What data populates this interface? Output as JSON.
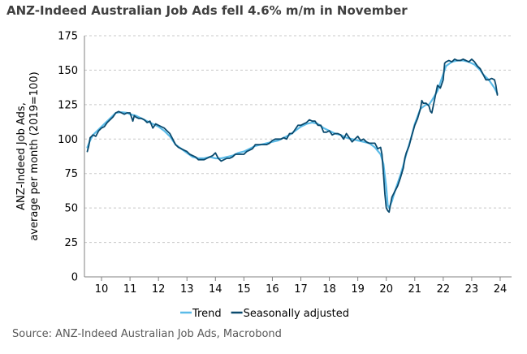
{
  "chart_data": {
    "type": "line",
    "title": "ANZ-Indeed Australian Job Ads fell 4.6% m/m in November",
    "ylabel_lines": [
      "ANZ-Indeed Job Ads,",
      "average per month (2019=100)"
    ],
    "xlabel": "",
    "ylim": [
      0,
      175
    ],
    "yticks": [
      0,
      25,
      50,
      75,
      100,
      125,
      150,
      175
    ],
    "xlim": [
      9.4,
      24.4
    ],
    "xticks": [
      {
        "value": 10,
        "label": "10"
      },
      {
        "value": 11,
        "label": "11"
      },
      {
        "value": 12,
        "label": "12"
      },
      {
        "value": 13,
        "label": "13"
      },
      {
        "value": 14,
        "label": "14"
      },
      {
        "value": 15,
        "label": "15"
      },
      {
        "value": 16,
        "label": "16"
      },
      {
        "value": 17,
        "label": "17"
      },
      {
        "value": 18,
        "label": "18"
      },
      {
        "value": 19,
        "label": "19"
      },
      {
        "value": 20,
        "label": "20"
      },
      {
        "value": 21,
        "label": "21"
      },
      {
        "value": 22,
        "label": "22"
      },
      {
        "value": 23,
        "label": "23"
      },
      {
        "value": 24,
        "label": "24"
      }
    ],
    "grid": "horizontal dashed",
    "legend_position": "bottom-center",
    "series": [
      {
        "name": "Trend",
        "color": "#5bbbe8",
        "points": [
          [
            9.5,
            94
          ],
          [
            9.6,
            99
          ],
          [
            9.7,
            103
          ],
          [
            9.8,
            105
          ],
          [
            9.9,
            107
          ],
          [
            10.0,
            109
          ],
          [
            10.2,
            113
          ],
          [
            10.4,
            117
          ],
          [
            10.5,
            119
          ],
          [
            10.7,
            119.5
          ],
          [
            10.9,
            119
          ],
          [
            11.0,
            118
          ],
          [
            11.2,
            117
          ],
          [
            11.4,
            115
          ],
          [
            11.6,
            113
          ],
          [
            11.8,
            111
          ],
          [
            12.0,
            109
          ],
          [
            12.2,
            106
          ],
          [
            12.4,
            102
          ],
          [
            12.5,
            99
          ],
          [
            12.6,
            96
          ],
          [
            12.8,
            93
          ],
          [
            13.0,
            90
          ],
          [
            13.2,
            87
          ],
          [
            13.4,
            86
          ],
          [
            13.6,
            86
          ],
          [
            13.8,
            87
          ],
          [
            14.0,
            86
          ],
          [
            14.2,
            86
          ],
          [
            14.4,
            87
          ],
          [
            14.6,
            88
          ],
          [
            14.8,
            90
          ],
          [
            15.0,
            91
          ],
          [
            15.2,
            93
          ],
          [
            15.4,
            95
          ],
          [
            15.6,
            96
          ],
          [
            15.8,
            97
          ],
          [
            16.0,
            98
          ],
          [
            16.2,
            99
          ],
          [
            16.4,
            101
          ],
          [
            16.6,
            103
          ],
          [
            16.8,
            106
          ],
          [
            17.0,
            109
          ],
          [
            17.2,
            111
          ],
          [
            17.4,
            112
          ],
          [
            17.6,
            111
          ],
          [
            17.8,
            108
          ],
          [
            18.0,
            106
          ],
          [
            18.2,
            104
          ],
          [
            18.4,
            103
          ],
          [
            18.6,
            101
          ],
          [
            18.8,
            100
          ],
          [
            19.0,
            99
          ],
          [
            19.2,
            98
          ],
          [
            19.4,
            97
          ],
          [
            19.6,
            94
          ],
          [
            19.8,
            89
          ],
          [
            19.9,
            82
          ],
          [
            20.0,
            65
          ],
          [
            20.05,
            52
          ],
          [
            20.1,
            50
          ],
          [
            20.2,
            55
          ],
          [
            20.3,
            62
          ],
          [
            20.4,
            68
          ],
          [
            20.5,
            74
          ],
          [
            20.6,
            81
          ],
          [
            20.7,
            89
          ],
          [
            20.8,
            96
          ],
          [
            20.9,
            103
          ],
          [
            21.0,
            111
          ],
          [
            21.2,
            122
          ],
          [
            21.4,
            125
          ],
          [
            21.5,
            125
          ],
          [
            21.6,
            128
          ],
          [
            21.8,
            135
          ],
          [
            21.9,
            141
          ],
          [
            22.0,
            147
          ],
          [
            22.1,
            153
          ],
          [
            22.3,
            156
          ],
          [
            22.5,
            157
          ],
          [
            22.7,
            157
          ],
          [
            22.9,
            156
          ],
          [
            23.1,
            154
          ],
          [
            23.3,
            150
          ],
          [
            23.4,
            147
          ],
          [
            23.5,
            145
          ],
          [
            23.6,
            143
          ],
          [
            23.7,
            140
          ],
          [
            23.8,
            137
          ],
          [
            23.9,
            133
          ]
        ]
      },
      {
        "name": "Seasonally adjusted",
        "color": "#0a4a6e",
        "points": [
          [
            9.5,
            91
          ],
          [
            9.55,
            95
          ],
          [
            9.6,
            101
          ],
          [
            9.7,
            103
          ],
          [
            9.8,
            102
          ],
          [
            9.9,
            106
          ],
          [
            10.0,
            108
          ],
          [
            10.1,
            109
          ],
          [
            10.2,
            112
          ],
          [
            10.3,
            114
          ],
          [
            10.4,
            116
          ],
          [
            10.5,
            119
          ],
          [
            10.6,
            120
          ],
          [
            10.7,
            119
          ],
          [
            10.8,
            118
          ],
          [
            10.9,
            119
          ],
          [
            11.0,
            119
          ],
          [
            11.1,
            113
          ],
          [
            11.15,
            117
          ],
          [
            11.2,
            116
          ],
          [
            11.3,
            115
          ],
          [
            11.4,
            115
          ],
          [
            11.5,
            114
          ],
          [
            11.6,
            112
          ],
          [
            11.7,
            113
          ],
          [
            11.8,
            108
          ],
          [
            11.9,
            111
          ],
          [
            12.0,
            110
          ],
          [
            12.1,
            109
          ],
          [
            12.2,
            108
          ],
          [
            12.3,
            106
          ],
          [
            12.4,
            104
          ],
          [
            12.5,
            100
          ],
          [
            12.6,
            96
          ],
          [
            12.7,
            94
          ],
          [
            12.8,
            93
          ],
          [
            12.9,
            92
          ],
          [
            13.0,
            91
          ],
          [
            13.1,
            89
          ],
          [
            13.2,
            88
          ],
          [
            13.3,
            87
          ],
          [
            13.4,
            85
          ],
          [
            13.5,
            85
          ],
          [
            13.6,
            85
          ],
          [
            13.7,
            86
          ],
          [
            13.8,
            87
          ],
          [
            13.9,
            88
          ],
          [
            14.0,
            90
          ],
          [
            14.1,
            86
          ],
          [
            14.2,
            84
          ],
          [
            14.3,
            85
          ],
          [
            14.4,
            86
          ],
          [
            14.5,
            86
          ],
          [
            14.6,
            87
          ],
          [
            14.7,
            89
          ],
          [
            14.8,
            89
          ],
          [
            14.9,
            89
          ],
          [
            15.0,
            89
          ],
          [
            15.1,
            91
          ],
          [
            15.2,
            92
          ],
          [
            15.3,
            93
          ],
          [
            15.4,
            96
          ],
          [
            15.5,
            96
          ],
          [
            15.6,
            96
          ],
          [
            15.7,
            96
          ],
          [
            15.8,
            96
          ],
          [
            15.9,
            97
          ],
          [
            16.0,
            99
          ],
          [
            16.1,
            100
          ],
          [
            16.2,
            100
          ],
          [
            16.3,
            100
          ],
          [
            16.4,
            101
          ],
          [
            16.5,
            100
          ],
          [
            16.6,
            104
          ],
          [
            16.7,
            104
          ],
          [
            16.8,
            107
          ],
          [
            16.9,
            110
          ],
          [
            17.0,
            110
          ],
          [
            17.1,
            111
          ],
          [
            17.2,
            112
          ],
          [
            17.3,
            114
          ],
          [
            17.4,
            113
          ],
          [
            17.5,
            113
          ],
          [
            17.6,
            110
          ],
          [
            17.7,
            110
          ],
          [
            17.8,
            105
          ],
          [
            17.9,
            105
          ],
          [
            18.0,
            106
          ],
          [
            18.1,
            103
          ],
          [
            18.2,
            104
          ],
          [
            18.3,
            104
          ],
          [
            18.4,
            103
          ],
          [
            18.5,
            100
          ],
          [
            18.6,
            104
          ],
          [
            18.7,
            101
          ],
          [
            18.8,
            98
          ],
          [
            18.9,
            100
          ],
          [
            19.0,
            102
          ],
          [
            19.1,
            99
          ],
          [
            19.2,
            100
          ],
          [
            19.3,
            98
          ],
          [
            19.4,
            97
          ],
          [
            19.5,
            97
          ],
          [
            19.6,
            97
          ],
          [
            19.7,
            93
          ],
          [
            19.8,
            94
          ],
          [
            19.85,
            89
          ],
          [
            19.9,
            75
          ],
          [
            19.95,
            60
          ],
          [
            20.0,
            50
          ],
          [
            20.05,
            48
          ],
          [
            20.1,
            47
          ],
          [
            20.15,
            53
          ],
          [
            20.2,
            58
          ],
          [
            20.3,
            62
          ],
          [
            20.4,
            66
          ],
          [
            20.5,
            72
          ],
          [
            20.6,
            79
          ],
          [
            20.65,
            86
          ],
          [
            20.7,
            90
          ],
          [
            20.8,
            95
          ],
          [
            20.9,
            103
          ],
          [
            21.0,
            110
          ],
          [
            21.1,
            115
          ],
          [
            21.2,
            122
          ],
          [
            21.25,
            128
          ],
          [
            21.3,
            126
          ],
          [
            21.4,
            126
          ],
          [
            21.5,
            124
          ],
          [
            21.55,
            120
          ],
          [
            21.6,
            119
          ],
          [
            21.7,
            129
          ],
          [
            21.8,
            139
          ],
          [
            21.85,
            138
          ],
          [
            21.9,
            137
          ],
          [
            22.0,
            143
          ],
          [
            22.05,
            155
          ],
          [
            22.1,
            156
          ],
          [
            22.2,
            157
          ],
          [
            22.3,
            156
          ],
          [
            22.4,
            158
          ],
          [
            22.5,
            157
          ],
          [
            22.6,
            157
          ],
          [
            22.7,
            158
          ],
          [
            22.8,
            157
          ],
          [
            22.9,
            156
          ],
          [
            23.0,
            158
          ],
          [
            23.1,
            156
          ],
          [
            23.2,
            153
          ],
          [
            23.3,
            151
          ],
          [
            23.4,
            147
          ],
          [
            23.5,
            143
          ],
          [
            23.6,
            143
          ],
          [
            23.7,
            144
          ],
          [
            23.8,
            143
          ],
          [
            23.85,
            139
          ],
          [
            23.9,
            132
          ]
        ]
      }
    ],
    "source": "Source: ANZ-Indeed Australian Job Ads, Macrobond"
  }
}
